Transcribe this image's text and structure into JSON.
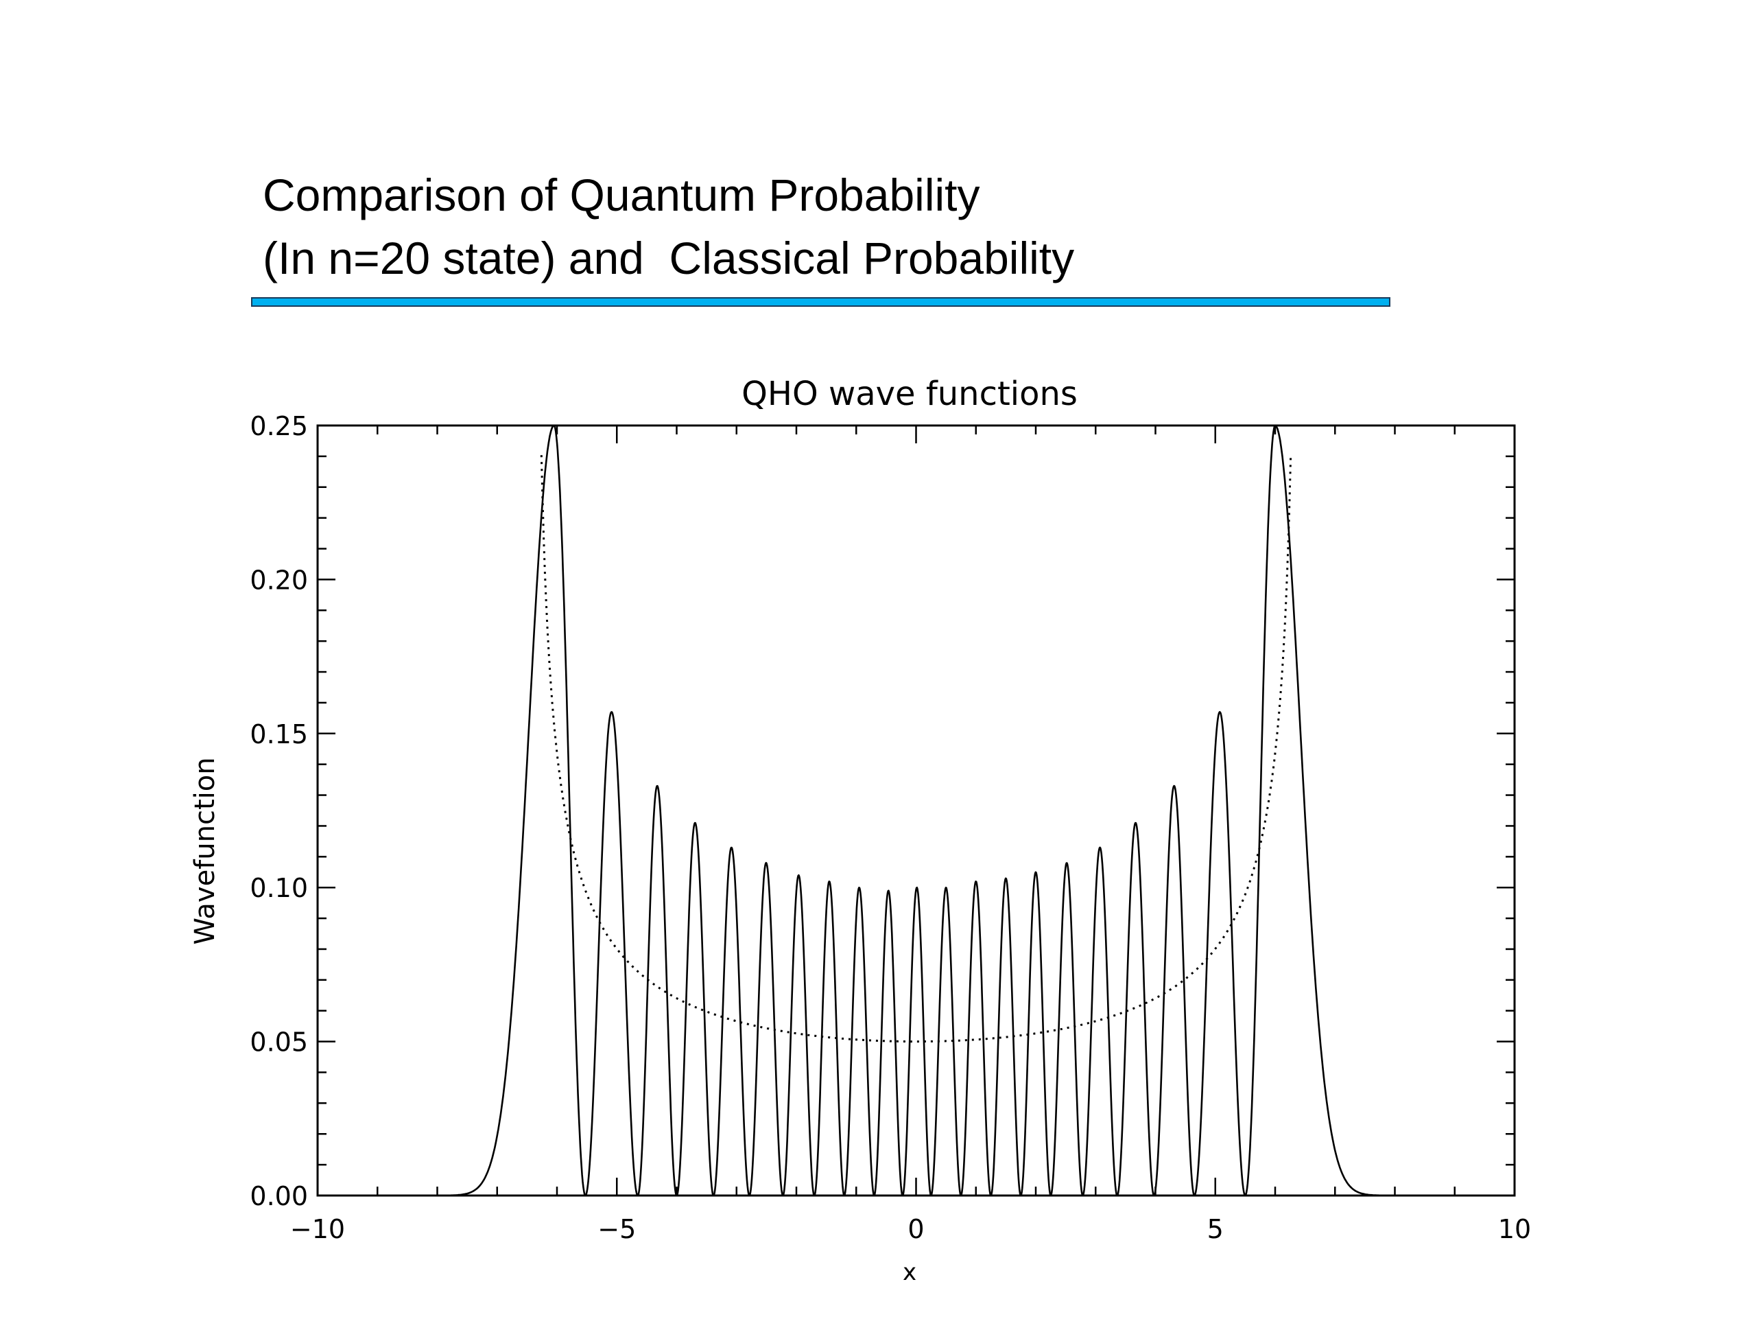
{
  "slide": {
    "title_line1": "Comparison of Quantum Probability",
    "title_line2": "(In n=20 state) and  Classical Probability",
    "rule_color": "#00B0F0"
  },
  "chart_data": {
    "type": "line",
    "title": "QHO wave functions",
    "xlabel": "x",
    "ylabel": "Wavefunction",
    "xlim": [
      -10,
      10
    ],
    "ylim": [
      0,
      0.25
    ],
    "x_ticks": [
      "-10",
      "-5",
      "0",
      "5",
      "10"
    ],
    "y_ticks": [
      "0.00",
      "0.05",
      "0.10",
      "0.15",
      "0.20",
      "0.25"
    ],
    "grid": false,
    "series": [
      {
        "style": "solid",
        "color": "#000000",
        "function": "quantum probability density |psi_20(x)|^2 (harmonic oscillator, n=20)",
        "peaks": [
          {
            "x": -6.05,
            "y": 0.25
          },
          {
            "x": -5.0,
            "y": 0.157
          },
          {
            "x": -4.3,
            "y": 0.133
          },
          {
            "x": -3.7,
            "y": 0.121
          },
          {
            "x": -3.07,
            "y": 0.113
          },
          {
            "x": -2.5,
            "y": 0.108
          },
          {
            "x": -1.95,
            "y": 0.104
          },
          {
            "x": -1.45,
            "y": 0.102
          },
          {
            "x": -0.95,
            "y": 0.1
          },
          {
            "x": -0.45,
            "y": 0.099
          },
          {
            "x": 0.0,
            "y": 0.1
          },
          {
            "x": 0.5,
            "y": 0.1
          },
          {
            "x": 1.0,
            "y": 0.102
          },
          {
            "x": 1.5,
            "y": 0.103
          },
          {
            "x": 2.0,
            "y": 0.105
          },
          {
            "x": 2.5,
            "y": 0.108
          },
          {
            "x": 3.07,
            "y": 0.113
          },
          {
            "x": 3.65,
            "y": 0.121
          },
          {
            "x": 4.3,
            "y": 0.133
          },
          {
            "x": 5.0,
            "y": 0.157
          },
          {
            "x": 6.0,
            "y": 0.25
          }
        ]
      },
      {
        "style": "dotted",
        "color": "#000000",
        "function": "classical probability density 1/(pi*sqrt(A^2 - x^2)), A = 6.4",
        "amplitude": 6.4,
        "min_value_at_center": 0.05
      }
    ]
  }
}
